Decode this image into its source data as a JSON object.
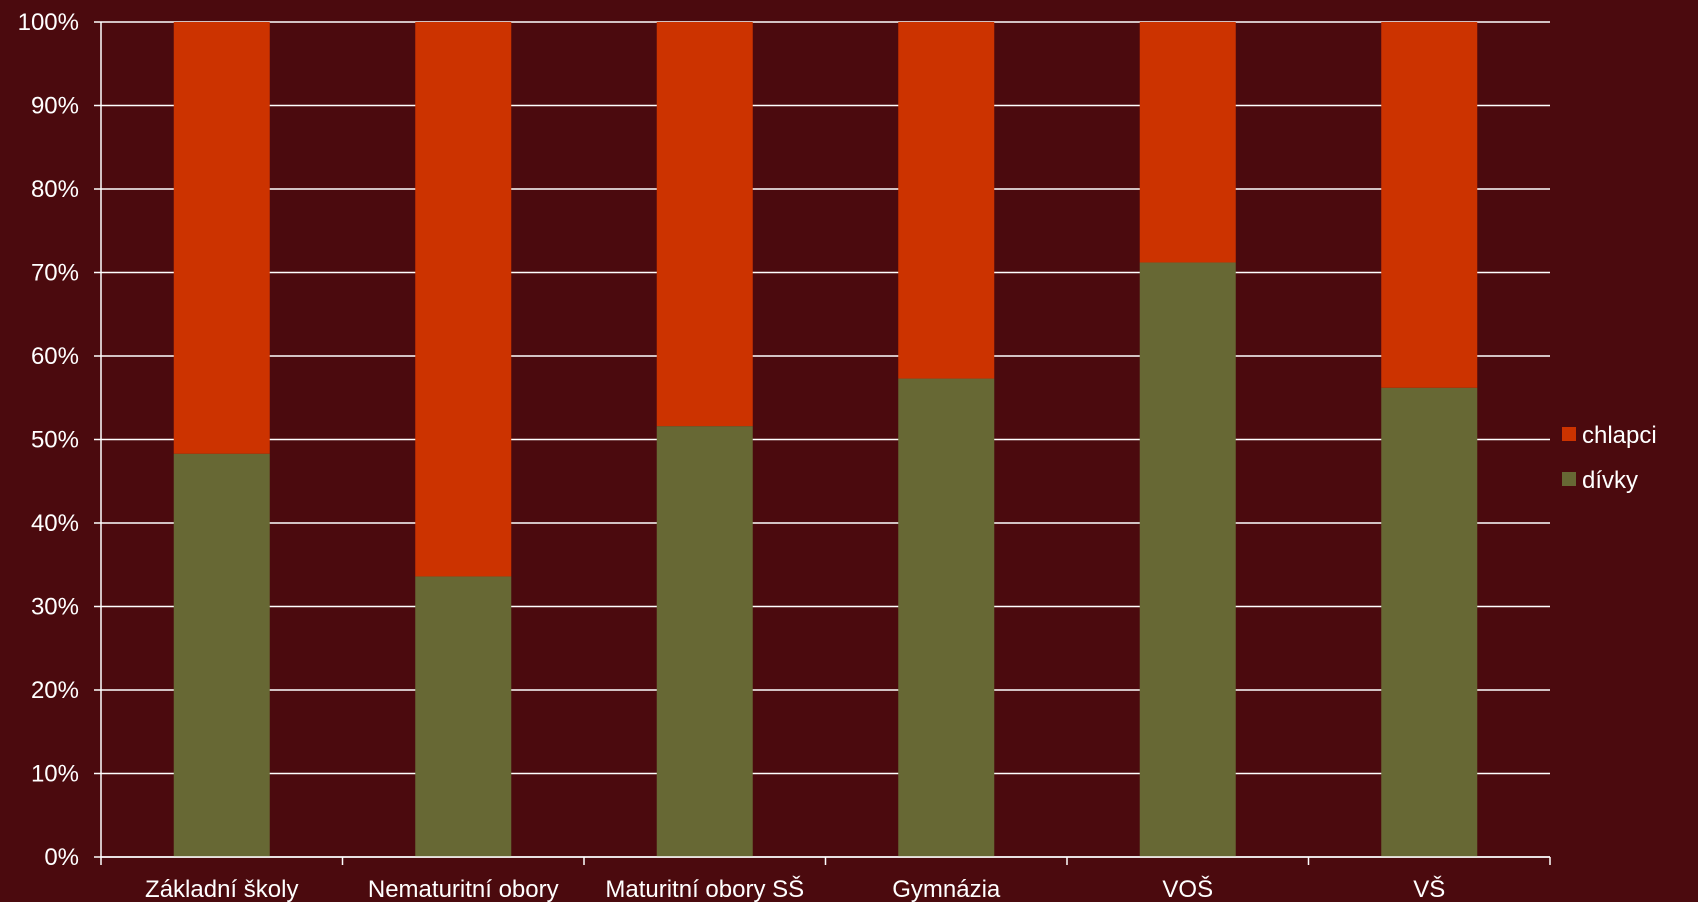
{
  "chart_data": {
    "type": "bar",
    "stacked": true,
    "percent_stacked": true,
    "categories": [
      "Základní školy",
      "Nematuritní obory",
      "Maturitní obory SŠ",
      "Gymnázia",
      "VOŠ",
      "VŠ"
    ],
    "series": [
      {
        "name": "dívky",
        "values": [
          48.3,
          33.6,
          51.6,
          57.3,
          71.2,
          56.2
        ],
        "color": "#676834"
      },
      {
        "name": "chlapci",
        "values": [
          51.7,
          66.4,
          48.4,
          42.7,
          28.8,
          43.8
        ],
        "color": "#cc3300"
      }
    ],
    "ylim": [
      0,
      100
    ],
    "yticks": [
      "0%",
      "10%",
      "20%",
      "30%",
      "40%",
      "50%",
      "60%",
      "70%",
      "80%",
      "90%",
      "100%"
    ],
    "grid": true,
    "legend_position": "right",
    "legend_order": [
      "chlapci",
      "dívky"
    ],
    "background_color": "#4b0a0e",
    "gridline_color": "#ffffff",
    "text_color": "#ffffff"
  }
}
